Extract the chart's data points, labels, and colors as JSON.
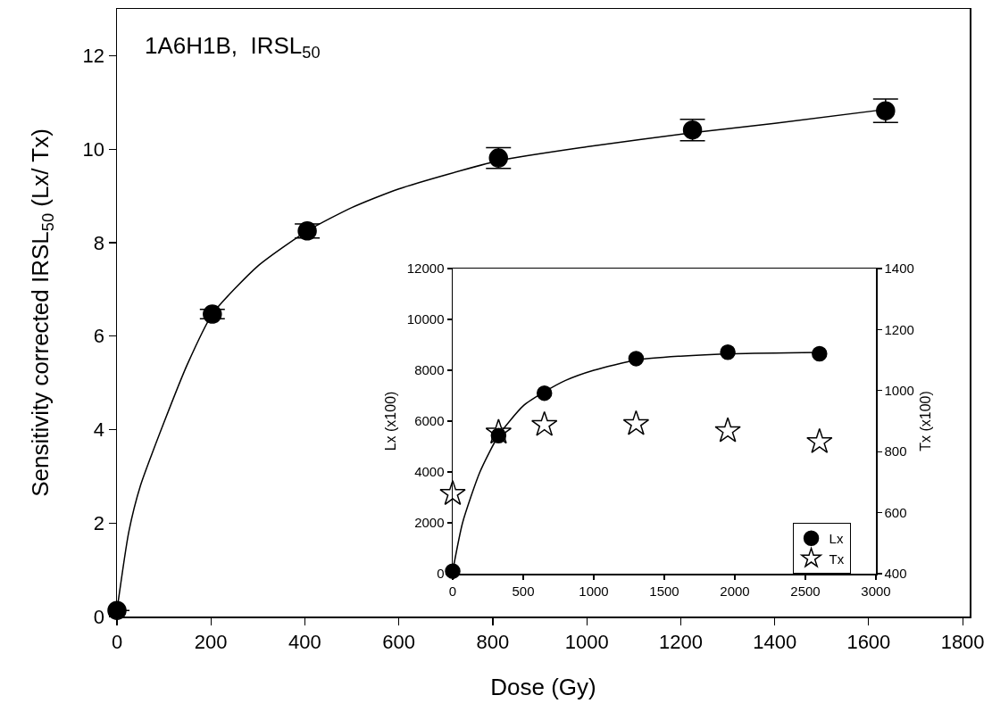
{
  "chart_data": [
    {
      "type": "scatter",
      "xlabel": "Dose (Gy)",
      "ylabel": "Sensitivity corrected IRSL$_{50}$ (Lx/ Tx)",
      "annotations": [
        "1A6H1B,  IRSL$_{50}$"
      ],
      "xlim": [
        0,
        1815
      ],
      "xticks": [
        0,
        200,
        400,
        600,
        800,
        1000,
        1200,
        1400,
        1600,
        1800
      ],
      "ylim": [
        0,
        13
      ],
      "yticks": [
        0,
        2,
        4,
        6,
        8,
        10,
        12
      ],
      "grid": false,
      "marker": "circle",
      "series": [
        {
          "color": "#000000",
          "x": [
            0,
            203,
            405,
            812,
            1225,
            1636
          ],
          "values": [
            0.13,
            6.47,
            8.25,
            9.81,
            10.41,
            10.82
          ],
          "errors": [
            null,
            0.1,
            0.15,
            0.22,
            0.23,
            0.25
          ]
        },
        {
          "type": "line",
          "color": "#000000",
          "marker": "none",
          "x": [
            0,
            25,
            50,
            100,
            150,
            203,
            300,
            405,
            500,
            600,
            812,
            1000,
            1225,
            1400,
            1636
          ],
          "values": [
            0.13,
            1.8,
            2.8,
            4.15,
            5.4,
            6.47,
            7.5,
            8.25,
            8.75,
            9.15,
            9.75,
            10.05,
            10.35,
            10.55,
            10.85
          ]
        }
      ]
    },
    {
      "type": "scatter",
      "ylabel": "Lx (x100)",
      "y2label": "Tx (x100)",
      "xlim": [
        0,
        3000
      ],
      "xticks": [
        0,
        500,
        1000,
        1500,
        2000,
        2500,
        3000
      ],
      "ylim": [
        0,
        12000
      ],
      "yticks": [
        0,
        2000,
        4000,
        6000,
        8000,
        10000,
        12000
      ],
      "y2lim": [
        400,
        1400
      ],
      "y2ticks": [
        400,
        600,
        800,
        1000,
        1200,
        1400
      ],
      "grid": false,
      "legend": "bottom right",
      "series": [
        {
          "name": "Lx",
          "color": "#000000",
          "marker": "circle",
          "x": [
            0,
            325,
            650,
            1300,
            1950,
            2600
          ],
          "values": [
            100,
            5430,
            7100,
            8460,
            8710,
            8650
          ]
        },
        {
          "name": "Tx",
          "color": "#000000",
          "marker": "star",
          "axis": "y2",
          "x": [
            0,
            325,
            650,
            1300,
            1950,
            2600
          ],
          "values": [
            662,
            863,
            888,
            891,
            868,
            832
          ]
        },
        {
          "type": "line",
          "color": "#000000",
          "marker": "none",
          "x": [
            0,
            70,
            193,
            325,
            500,
            650,
            800,
            1000,
            1300,
            1600,
            2000,
            2600
          ],
          "values": [
            100,
            2000,
            4000,
            5430,
            6600,
            7150,
            7600,
            8000,
            8400,
            8550,
            8650,
            8700
          ]
        }
      ]
    }
  ]
}
